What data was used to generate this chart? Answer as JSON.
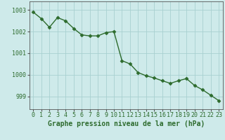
{
  "x": [
    0,
    1,
    2,
    3,
    4,
    5,
    6,
    7,
    8,
    9,
    10,
    11,
    12,
    13,
    14,
    15,
    16,
    17,
    18,
    19,
    20,
    21,
    22,
    23
  ],
  "y": [
    1002.9,
    1002.6,
    1002.2,
    1002.65,
    1002.5,
    1002.15,
    1001.85,
    1001.8,
    1001.8,
    1001.95,
    1002.0,
    1000.65,
    1000.5,
    1000.1,
    999.95,
    999.85,
    999.72,
    999.6,
    999.72,
    999.82,
    999.5,
    999.3,
    999.05,
    998.8
  ],
  "line_color": "#2d6b2d",
  "marker": "D",
  "marker_size": 2.5,
  "bg_color": "#ceeaea",
  "grid_color": "#a8d0d0",
  "axis_color": "#2d6b2d",
  "xlabel": "Graphe pression niveau de la mer (hPa)",
  "xlabel_fontsize": 7,
  "ytick_labels": [
    "999",
    "1000",
    "1001",
    "1002",
    "1003"
  ],
  "ytick_vals": [
    999,
    1000,
    1001,
    1002,
    1003
  ],
  "xticks": [
    0,
    1,
    2,
    3,
    4,
    5,
    6,
    7,
    8,
    9,
    10,
    11,
    12,
    13,
    14,
    15,
    16,
    17,
    18,
    19,
    20,
    21,
    22,
    23
  ],
  "ylim": [
    998.4,
    1003.4
  ],
  "xlim": [
    -0.5,
    23.5
  ],
  "tick_fontsize": 6,
  "line_width": 1.0
}
